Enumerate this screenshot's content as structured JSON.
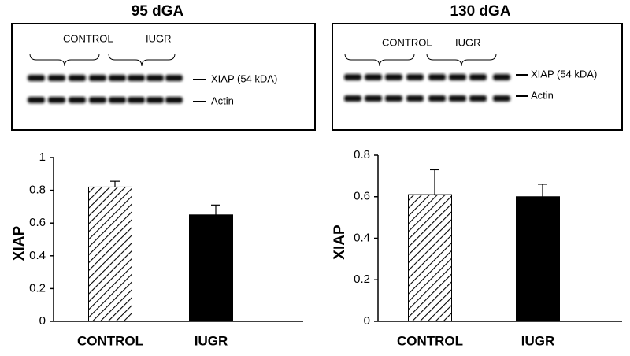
{
  "chart_data": [
    {
      "type": "bar",
      "title": "95 dGA",
      "blot": {
        "groups": [
          "CONTROL",
          "IUGR"
        ],
        "bands": [
          "XIAP (54 kDA)",
          "Actin"
        ]
      },
      "categories": [
        "CONTROL",
        "IUGR"
      ],
      "values": [
        0.82,
        0.65
      ],
      "errors": [
        0.035,
        0.06
      ],
      "colors": [
        "#ffffff",
        "#000000"
      ],
      "hatch": [
        true,
        false
      ],
      "ylabel": "XIAP",
      "ylim": [
        0,
        1
      ],
      "yticks": [
        0,
        0.2,
        0.4,
        0.6,
        0.8,
        1
      ]
    },
    {
      "type": "bar",
      "title": "130 dGA",
      "blot": {
        "groups": [
          "CONTROL",
          "IUGR"
        ],
        "bands": [
          "XIAP (54 kDA)",
          "Actin"
        ]
      },
      "categories": [
        "CONTROL",
        "IUGR"
      ],
      "values": [
        0.61,
        0.6
      ],
      "errors": [
        0.12,
        0.06
      ],
      "colors": [
        "#ffffff",
        "#000000"
      ],
      "hatch": [
        true,
        false
      ],
      "ylabel": "XIAP",
      "ylim": [
        0,
        0.8
      ],
      "yticks": [
        0,
        0.2,
        0.4,
        0.6,
        0.8
      ]
    }
  ]
}
